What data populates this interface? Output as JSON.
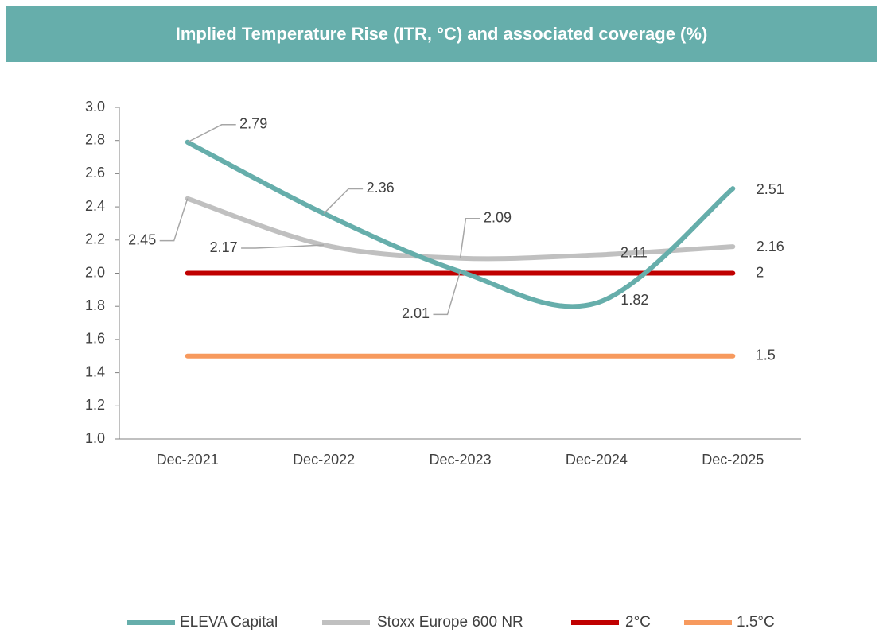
{
  "chart_data": {
    "type": "line",
    "title": "Implied Temperature Rise (ITR, °C) and associated coverage (%)",
    "categories": [
      "Dec-2021",
      "Dec-2022",
      "Dec-2023",
      "Dec-2024",
      "Dec-2025"
    ],
    "series": [
      {
        "name": "ELEVA Capital",
        "color": "#66aeab",
        "values": [
          2.79,
          2.36,
          2.01,
          1.82,
          2.51
        ],
        "data_labels": "all",
        "smooth": true
      },
      {
        "name": "Stoxx Europe 600 NR",
        "color": "#c0c0c0",
        "values": [
          2.45,
          2.17,
          2.09,
          2.11,
          2.16
        ],
        "data_labels": "all",
        "smooth": true
      },
      {
        "name": "2°C",
        "color": "#c00000",
        "values": [
          2,
          2,
          2,
          2,
          2
        ],
        "data_labels": "last",
        "smooth": false
      },
      {
        "name": "1.5°C",
        "color": "#f79a5e",
        "values": [
          1.5,
          1.5,
          1.5,
          1.5,
          1.5
        ],
        "data_labels": "last",
        "smooth": false
      }
    ],
    "ylim": [
      1,
      3
    ],
    "yticks": [
      {
        "value": 1,
        "label": "1.0"
      },
      1.2,
      1.4,
      1.6,
      1.8,
      {
        "value": 2,
        "label": "2.0"
      },
      2.2,
      2.4,
      2.6,
      2.8,
      {
        "value": 3,
        "label": "3.0"
      }
    ],
    "grid": false,
    "legend": "bottom"
  }
}
